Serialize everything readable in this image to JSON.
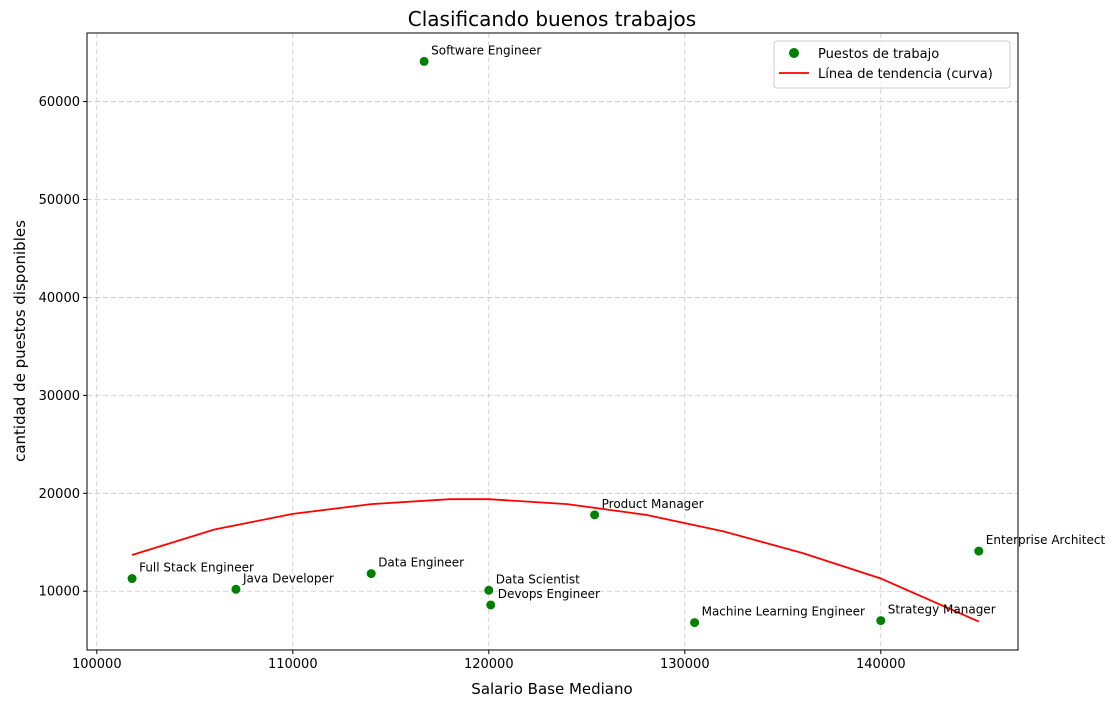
{
  "chart_data": {
    "type": "scatter",
    "title": "Clasificando buenos trabajos",
    "xlabel": "Salario Base Mediano",
    "ylabel": "cantidad de puestos disponibles",
    "xlim": [
      99500,
      147000
    ],
    "ylim": [
      4000,
      67000
    ],
    "xticks": [
      100000,
      110000,
      120000,
      130000,
      140000
    ],
    "yticks": [
      10000,
      20000,
      30000,
      40000,
      50000,
      60000
    ],
    "grid": true,
    "legend_position": "top-right",
    "series": [
      {
        "name": "Puestos de trabajo",
        "type": "scatter",
        "color": "#008000",
        "points": [
          {
            "label": "Software Engineer",
            "x": 116700,
            "y": 64100
          },
          {
            "label": "Full Stack Engineer",
            "x": 101800,
            "y": 11300
          },
          {
            "label": "Java Developer",
            "x": 107100,
            "y": 10200
          },
          {
            "label": "Data Engineer",
            "x": 114000,
            "y": 11800
          },
          {
            "label": "Data Scientist",
            "x": 120000,
            "y": 10100
          },
          {
            "label": "Devops Engineer",
            "x": 120100,
            "y": 8600
          },
          {
            "label": "Product Manager",
            "x": 125400,
            "y": 17800
          },
          {
            "label": "Machine Learning Engineer",
            "x": 130500,
            "y": 6800
          },
          {
            "label": "Strategy Manager",
            "x": 140000,
            "y": 7000
          },
          {
            "label": "Enterprise Architect",
            "x": 145000,
            "y": 14100
          }
        ]
      },
      {
        "name": "Línea de tendencia (curva)",
        "type": "line",
        "color": "#ff0000",
        "x": [
          101800,
          106000,
          110000,
          114000,
          118000,
          120000,
          124000,
          128000,
          132000,
          136000,
          140000,
          145000
        ],
        "y": [
          13700,
          16300,
          17900,
          18900,
          19400,
          19400,
          18900,
          17800,
          16100,
          13900,
          11300,
          6900
        ]
      }
    ]
  }
}
